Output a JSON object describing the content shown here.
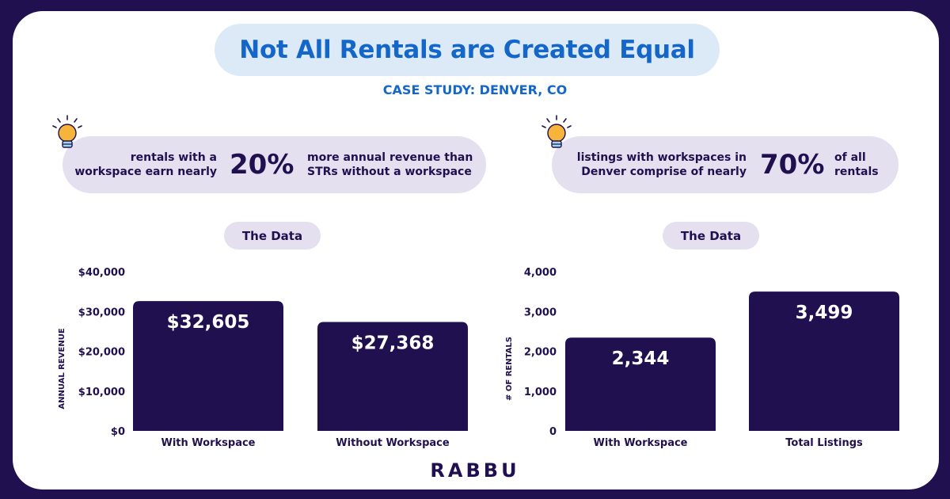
{
  "header": {
    "title": "Not All Rentals are Created Equal",
    "subtitle": "CASE STUDY: DENVER, CO"
  },
  "stats": [
    {
      "left_line1": "rentals with a",
      "left_line2": "workspace earn nearly",
      "value": "20%",
      "right_line1": "more annual revenue than",
      "right_line2": "STRs without a workspace"
    },
    {
      "left_line1": "listings with workspaces in",
      "left_line2": "Denver comprise of nearly",
      "value": "70%",
      "right_line1": "of all",
      "right_line2": "rentals"
    }
  ],
  "data_labels": [
    "The Data",
    "The Data"
  ],
  "logo": "RABBU",
  "colors": {
    "bar": "#20104f",
    "accent_blue": "#1467c9",
    "pill_bg": "#e4e0ef",
    "title_bg": "#dceaf8",
    "frame": "#20104f"
  },
  "chart_data": [
    {
      "type": "bar",
      "categories": [
        "With Workspace",
        "Without Workspace"
      ],
      "values": [
        32605,
        27368
      ],
      "data_labels": [
        "$32,605",
        "$27,368"
      ],
      "ylabel": "ANNUAL REVENUE",
      "ylim": [
        0,
        40000
      ],
      "yticks": [
        0,
        10000,
        20000,
        30000,
        40000
      ],
      "ytick_labels": [
        "$0",
        "$10,000",
        "$20,000",
        "$30,000",
        "$40,000"
      ],
      "grid": false
    },
    {
      "type": "bar",
      "categories": [
        "With Workspace",
        "Total Listings"
      ],
      "values": [
        2344,
        3499
      ],
      "data_labels": [
        "2,344",
        "3,499"
      ],
      "ylabel": "# OF RENTALS",
      "ylim": [
        0,
        4000
      ],
      "yticks": [
        0,
        1000,
        2000,
        3000,
        4000
      ],
      "ytick_labels": [
        "0",
        "1,000",
        "2,000",
        "3,000",
        "4,000"
      ],
      "grid": false
    }
  ]
}
